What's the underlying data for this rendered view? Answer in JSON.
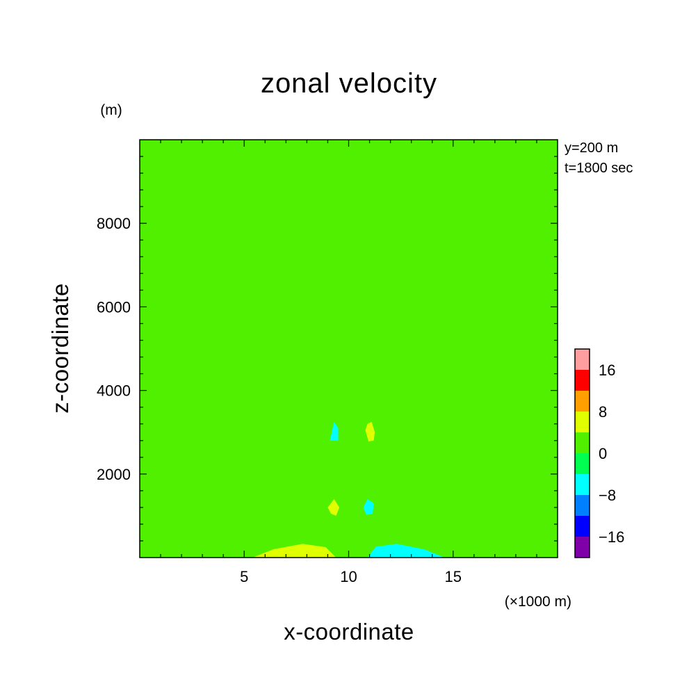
{
  "chart_data": {
    "type": "heatmap",
    "title": "zonal velocity",
    "xlabel": "x-coordinate",
    "ylabel": "z-coordinate",
    "x_unit_label": "(×1000 m)",
    "y_unit_label": "(m)",
    "xlim": [
      0,
      20
    ],
    "ylim": [
      0,
      10000
    ],
    "x_ticks": [
      5,
      10,
      15
    ],
    "x_tick_labels": [
      "5",
      "10",
      "15"
    ],
    "y_ticks": [
      2000,
      4000,
      6000,
      8000
    ],
    "y_tick_labels": [
      "2000",
      "4000",
      "6000",
      "8000"
    ],
    "annotations": [
      "y=200 m",
      "t=1800 sec"
    ],
    "colorbar": {
      "levels": [
        -20,
        -16,
        -12,
        -8,
        -4,
        0,
        4,
        8,
        12,
        16,
        20
      ],
      "tick_values": [
        -16,
        -8,
        0,
        8,
        16
      ],
      "tick_labels": [
        "−16",
        "−8",
        "0",
        "8",
        "16"
      ],
      "colors": [
        "#7f00a8",
        "#0000ff",
        "#0080ff",
        "#00ffff",
        "#00ff50",
        "#50f000",
        "#e0ff00",
        "#ffa000",
        "#ff0000",
        "#ff9e9e"
      ]
    },
    "background_value": 0,
    "regions": [
      {
        "name": "left-upper-band",
        "value": 2,
        "points": [
          [
            0,
            3300
          ],
          [
            2,
            3250
          ],
          [
            4,
            3100
          ],
          [
            6,
            2950
          ],
          [
            7.6,
            2900
          ],
          [
            8,
            2500
          ],
          [
            7.6,
            2250
          ],
          [
            6,
            1900
          ],
          [
            5,
            1680
          ],
          [
            2,
            1650
          ],
          [
            0,
            1700
          ]
        ]
      },
      {
        "name": "left-lower-band",
        "value": 2,
        "points": [
          [
            0,
            850
          ],
          [
            3,
            800
          ],
          [
            6,
            900
          ],
          [
            8,
            1100
          ],
          [
            8.6,
            1150
          ],
          [
            9.2,
            1750
          ],
          [
            9.9,
            1700
          ],
          [
            9.9,
            0
          ],
          [
            0,
            0
          ]
        ]
      },
      {
        "name": "right-half-positive",
        "value": 2,
        "points": [
          [
            10.2,
            10000
          ],
          [
            20,
            10000
          ],
          [
            20,
            3300
          ],
          [
            18,
            3250
          ],
          [
            16,
            3100
          ],
          [
            14,
            2950
          ],
          [
            12.6,
            2900
          ],
          [
            12.2,
            2500
          ],
          [
            12.6,
            2250
          ],
          [
            14,
            1900
          ],
          [
            15,
            1680
          ],
          [
            18,
            1650
          ],
          [
            20,
            1700
          ],
          [
            20,
            850
          ],
          [
            17,
            800
          ],
          [
            14,
            900
          ],
          [
            12.4,
            1100
          ],
          [
            11.8,
            1150
          ],
          [
            11.2,
            1750
          ],
          [
            10.2,
            1700
          ]
        ]
      },
      {
        "name": "yellow-blob-upper-right",
        "value": 6,
        "points": [
          [
            10.8,
            3050
          ],
          [
            10.9,
            3200
          ],
          [
            11.1,
            3250
          ],
          [
            11.25,
            3000
          ],
          [
            11.2,
            2800
          ],
          [
            10.95,
            2780
          ]
        ]
      },
      {
        "name": "cyan-blob-upper-left",
        "value": -6,
        "points": [
          [
            9.1,
            2800
          ],
          [
            9.3,
            3250
          ],
          [
            9.5,
            3100
          ],
          [
            9.5,
            2800
          ]
        ]
      },
      {
        "name": "yellow-blob-lower-left",
        "value": 6,
        "points": [
          [
            9,
            1200
          ],
          [
            9.3,
            1400
          ],
          [
            9.55,
            1200
          ],
          [
            9.4,
            1000
          ],
          [
            9.15,
            1050
          ]
        ]
      },
      {
        "name": "cyan-blob-lower-right",
        "value": -6,
        "points": [
          [
            10.7,
            1200
          ],
          [
            10.9,
            1400
          ],
          [
            11.2,
            1300
          ],
          [
            11.15,
            1050
          ],
          [
            10.85,
            1020
          ]
        ]
      },
      {
        "name": "yellow-bottom-left",
        "value": 6,
        "points": [
          [
            5.4,
            0
          ],
          [
            6.4,
            200
          ],
          [
            7.8,
            330
          ],
          [
            8.9,
            250
          ],
          [
            9.4,
            0
          ]
        ]
      },
      {
        "name": "cyan-bottom-right",
        "value": -6,
        "points": [
          [
            10.9,
            0
          ],
          [
            11.3,
            260
          ],
          [
            12.3,
            330
          ],
          [
            13.6,
            200
          ],
          [
            14.6,
            0
          ]
        ]
      }
    ]
  }
}
